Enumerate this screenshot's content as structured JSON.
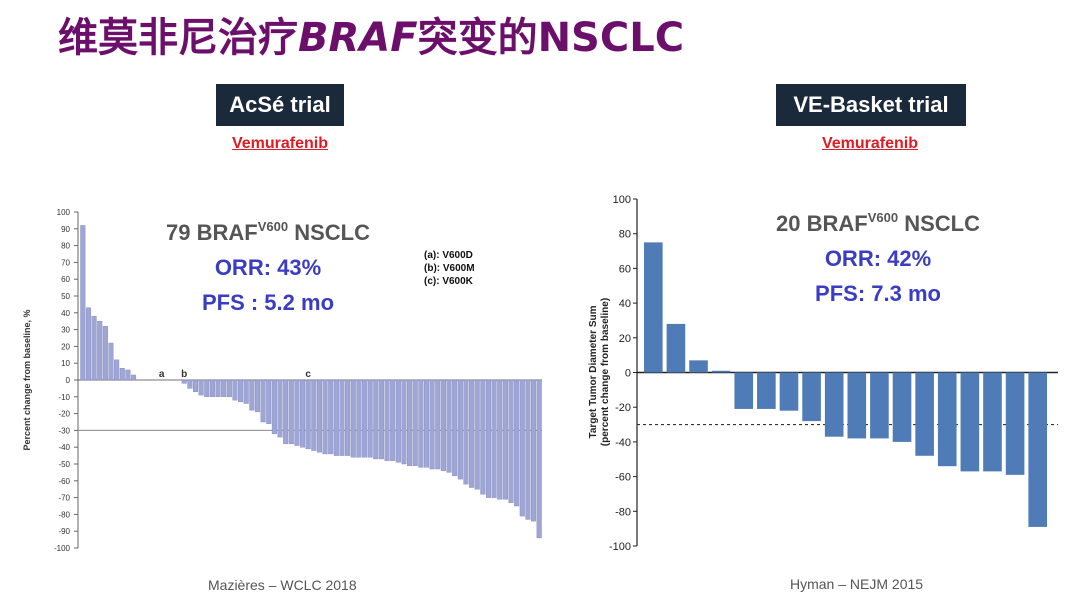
{
  "slide": {
    "title_prefix": "维莫非尼治疗",
    "title_italic": "BRAF",
    "title_suffix": "突变的NSCLC"
  },
  "left": {
    "trial": "AcSé trial",
    "drug": "Vemurafenib",
    "stat_main": "79 BRAF",
    "stat_sup": "V600",
    "stat_tail": " NSCLC",
    "orr": "ORR: 43%",
    "pfs": "PFS : 5.2 mo",
    "legend": [
      "(a): V600D",
      "(b): V600M",
      "(c): V600K"
    ],
    "citation": "Mazières – WCLC 2018"
  },
  "right": {
    "trial": "VE-Basket trial",
    "drug": "Vemurafenib",
    "stat_main": "20 BRAF",
    "stat_sup": "V600",
    "stat_tail": " NSCLC",
    "orr": "ORR: 42%",
    "pfs": "PFS: 7.3 mo",
    "citation": "Hyman – NEJM 2015"
  },
  "colors": {
    "title": "#6b0f6b",
    "left_bar": "#9fa6d4",
    "right_bar": "#4f7cb6",
    "stat_blue": "#3b3cc4"
  },
  "chart_data": [
    {
      "type": "bar",
      "ylabel": "Percent change from baseline, %",
      "ylim": [
        -100,
        100
      ],
      "yticks": [
        100,
        90,
        80,
        70,
        60,
        50,
        40,
        30,
        20,
        10,
        0,
        -10,
        -20,
        -30,
        -40,
        -50,
        -60,
        -70,
        -80,
        -90,
        -100
      ],
      "reference_line": -30,
      "values": [
        92,
        43,
        38,
        35,
        32,
        22,
        12,
        7,
        6,
        3,
        0,
        0,
        0,
        0,
        0,
        0,
        0,
        0,
        -2,
        -5,
        -7,
        -9,
        -10,
        -10,
        -10,
        -10,
        -10,
        -12,
        -13,
        -14,
        -18,
        -19,
        -25,
        -26,
        -32,
        -34,
        -38,
        -38,
        -39,
        -40,
        -41,
        -42,
        -43,
        -44,
        -44,
        -45,
        -45,
        -45,
        -46,
        -46,
        -46,
        -46,
        -47,
        -47,
        -48,
        -48,
        -49,
        -50,
        -51,
        -51,
        -52,
        -52,
        -53,
        -53,
        -54,
        -55,
        -57,
        -59,
        -62,
        -64,
        -65,
        -68,
        -70,
        -70,
        -71,
        -71,
        -73,
        -75,
        -81,
        -83,
        -84,
        -94
      ],
      "annotations": [
        {
          "label": "a",
          "index": 14
        },
        {
          "label": "b",
          "index": 18
        },
        {
          "label": "c",
          "index": 40
        }
      ]
    },
    {
      "type": "bar",
      "ylabel": "Target Tumor Diameter Sum (percent change from baseline)",
      "ylim": [
        -100,
        100
      ],
      "yticks": [
        100,
        80,
        60,
        40,
        20,
        0,
        -20,
        -40,
        -60,
        -80,
        -100
      ],
      "reference_line": -30,
      "values": [
        75,
        28,
        7,
        1,
        -21,
        -21,
        -22,
        -28,
        -37,
        -38,
        -38,
        -40,
        -48,
        -54,
        -57,
        -57,
        -59,
        -89
      ]
    }
  ]
}
